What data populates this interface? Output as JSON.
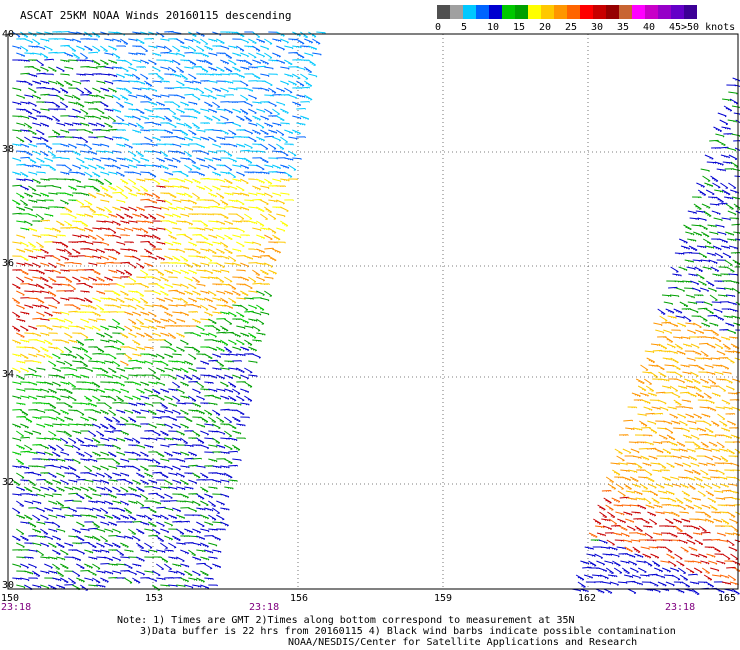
{
  "title": "ASCAT 25KM NOAA Winds 20160115 descending",
  "legend": {
    "unit_label": ">50 knots",
    "bins": [
      {
        "label": "0",
        "color": "#505050"
      },
      {
        "label": "",
        "color": "#a0a0a0"
      },
      {
        "label": "5",
        "color": "#00c8ff"
      },
      {
        "label": "",
        "color": "#0064ff"
      },
      {
        "label": "10",
        "color": "#0000d0"
      },
      {
        "label": "",
        "color": "#00c800"
      },
      {
        "label": "15",
        "color": "#00a000"
      },
      {
        "label": "",
        "color": "#ffff00"
      },
      {
        "label": "20",
        "color": "#ffc800"
      },
      {
        "label": "",
        "color": "#ff9600"
      },
      {
        "label": "25",
        "color": "#ff6400"
      },
      {
        "label": "",
        "color": "#ff0000"
      },
      {
        "label": "30",
        "color": "#c80000"
      },
      {
        "label": "",
        "color": "#960000"
      },
      {
        "label": "35",
        "color": "#c86432"
      },
      {
        "label": "",
        "color": "#ff00ff"
      },
      {
        "label": "40",
        "color": "#c800c8"
      },
      {
        "label": "",
        "color": "#9600c8"
      },
      {
        "label": "45",
        "color": "#6400c8"
      },
      {
        "label": "",
        "color": "#3c0096"
      }
    ]
  },
  "lat_labels": [
    "40",
    "38",
    "36",
    "34",
    "32",
    "30"
  ],
  "lon_labels": [
    "150",
    "153",
    "156",
    "159",
    "162",
    "165"
  ],
  "time_labels": [
    "23:18",
    "23:18",
    "23:18"
  ],
  "notes": {
    "line1": "Note: 1) Times are GMT 2)Times along bottom correspond to measurement at 35N",
    "line2": "3)Data buffer is 22 hrs from 20160115 4) Black wind barbs indicate possible contamination",
    "line3": "NOAA/NESDIS/Center for Satellite Applications and Research"
  }
}
